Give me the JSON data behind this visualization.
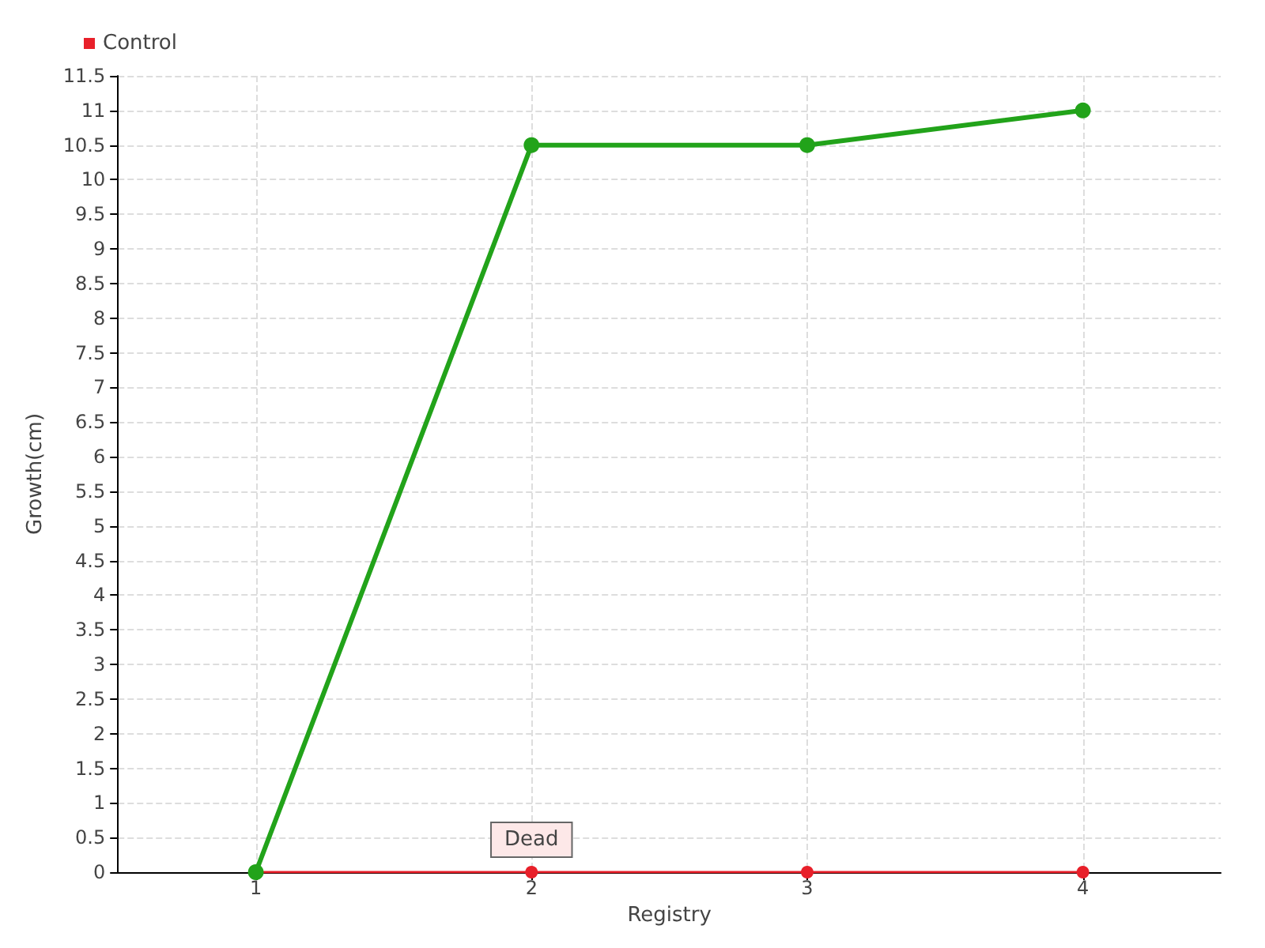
{
  "chart_data": {
    "type": "line",
    "xlabel": "Registry",
    "ylabel": "Growth(cm)",
    "x": [
      1,
      2,
      3,
      4
    ],
    "series": [
      {
        "color": "#22a31a",
        "values": [
          0,
          10.5,
          10.5,
          11
        ]
      },
      {
        "name": "Control",
        "color": "#e8202a",
        "values": [
          0,
          0,
          0,
          0
        ]
      }
    ],
    "xlim": [
      0.5,
      4.5
    ],
    "xticks": [
      1,
      2,
      3,
      4
    ],
    "ylim": [
      0,
      11.5
    ],
    "yticks": [
      0,
      0.5,
      1,
      1.5,
      2,
      2.5,
      3,
      3.5,
      4,
      4.5,
      5,
      5.5,
      6,
      6.5,
      7,
      7.5,
      8,
      8.5,
      9,
      9.5,
      10,
      10.5,
      11,
      11.5
    ],
    "annotations": [
      {
        "text": "Dead",
        "x": 2,
        "y": 0
      }
    ],
    "grid": true,
    "legend": "top left",
    "marker": "circle",
    "line_style": "solid"
  }
}
